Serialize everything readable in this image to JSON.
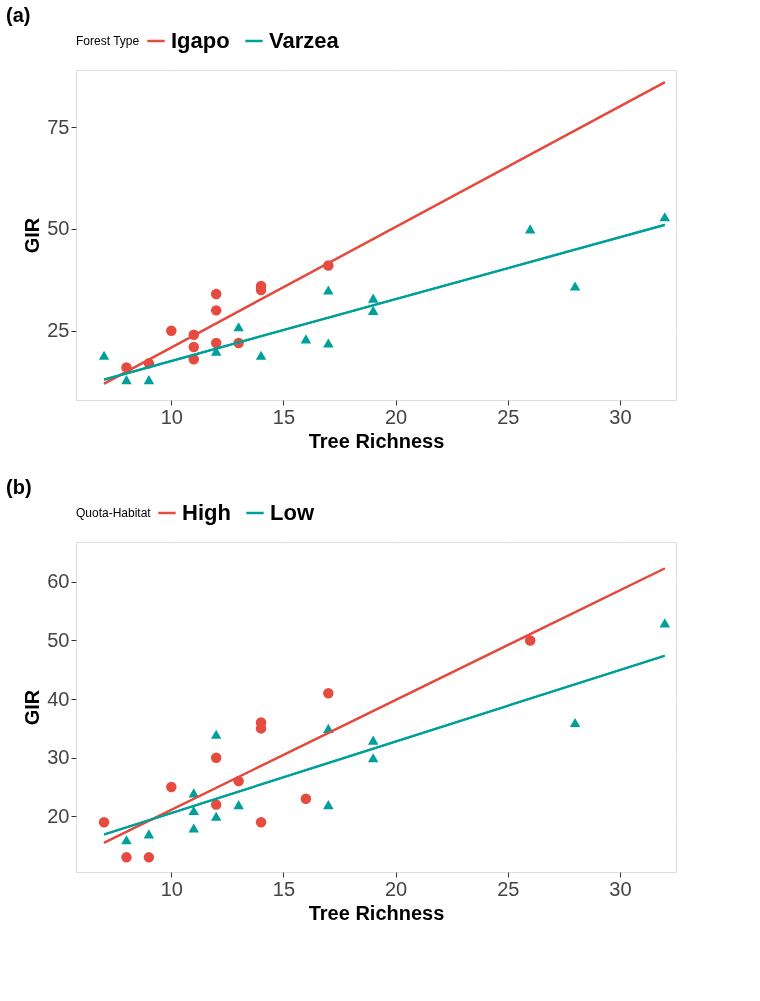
{
  "chart_data": [
    {
      "type": "scatter",
      "title": "(a)",
      "xlabel": "Tree Richness",
      "ylabel": "GIR",
      "legend_title": "Forest Type",
      "legend": "top",
      "grid": true,
      "xlim": [
        5.75,
        32.5
      ],
      "xticks": [
        10,
        15,
        20,
        25,
        30
      ],
      "ylim": [
        8,
        89
      ],
      "yticks": [
        25,
        50,
        75
      ],
      "series": [
        {
          "color": "#e64b40",
          "marker": "circle",
          "x": [
            8,
            9,
            10,
            11,
            11,
            11,
            12,
            12,
            12,
            13,
            14,
            14,
            17
          ],
          "values": [
            16,
            17,
            25,
            24,
            21,
            18,
            34,
            30,
            22,
            22,
            36,
            35,
            41
          ]
        },
        {
          "color": "#00a09a",
          "marker": "triangle",
          "x": [
            7,
            8,
            9,
            12,
            13,
            14,
            16,
            17,
            17,
            19,
            19,
            26,
            28,
            32
          ],
          "values": [
            19,
            13,
            13,
            20,
            26,
            19,
            23,
            35,
            22,
            33,
            30,
            50,
            36,
            53
          ]
        },
        {
          "type": "line",
          "name": "Igapo",
          "color": "#e64b40",
          "x": [
            7,
            32
          ],
          "values": [
            12,
            86
          ]
        },
        {
          "type": "line",
          "name": "Varzea",
          "color": "#00a09a",
          "x": [
            7,
            32
          ],
          "values": [
            13,
            51
          ]
        }
      ]
    },
    {
      "type": "scatter",
      "title": "(b)",
      "xlabel": "Tree Richness",
      "ylabel": "GIR",
      "legend_title": "Quota-Habitat",
      "legend": "top",
      "grid": true,
      "xlim": [
        5.75,
        32.5
      ],
      "xticks": [
        10,
        15,
        20,
        25,
        30
      ],
      "ylim": [
        10.5,
        66.8
      ],
      "yticks": [
        20,
        30,
        40,
        50,
        60
      ],
      "series": [
        {
          "color": "#e64b40",
          "marker": "circle",
          "x": [
            7,
            8,
            9,
            10,
            12,
            12,
            13,
            14,
            14,
            14,
            16,
            17,
            26
          ],
          "values": [
            19,
            13,
            13,
            25,
            30,
            22,
            26,
            36,
            35,
            19,
            23,
            41,
            50
          ]
        },
        {
          "color": "#00a09a",
          "marker": "triangle",
          "x": [
            8,
            9,
            11,
            11,
            11,
            12,
            12,
            13,
            17,
            17,
            19,
            19,
            28,
            32
          ],
          "values": [
            16,
            17,
            24,
            21,
            18,
            34,
            20,
            22,
            35,
            22,
            33,
            30,
            36,
            53
          ]
        },
        {
          "type": "line",
          "name": "High",
          "color": "#e64b40",
          "x": [
            7,
            32
          ],
          "values": [
            15.5,
            62.3
          ]
        },
        {
          "type": "line",
          "name": "Low",
          "color": "#00a09a",
          "x": [
            7,
            32
          ],
          "values": [
            16.9,
            47.4
          ]
        }
      ]
    }
  ]
}
